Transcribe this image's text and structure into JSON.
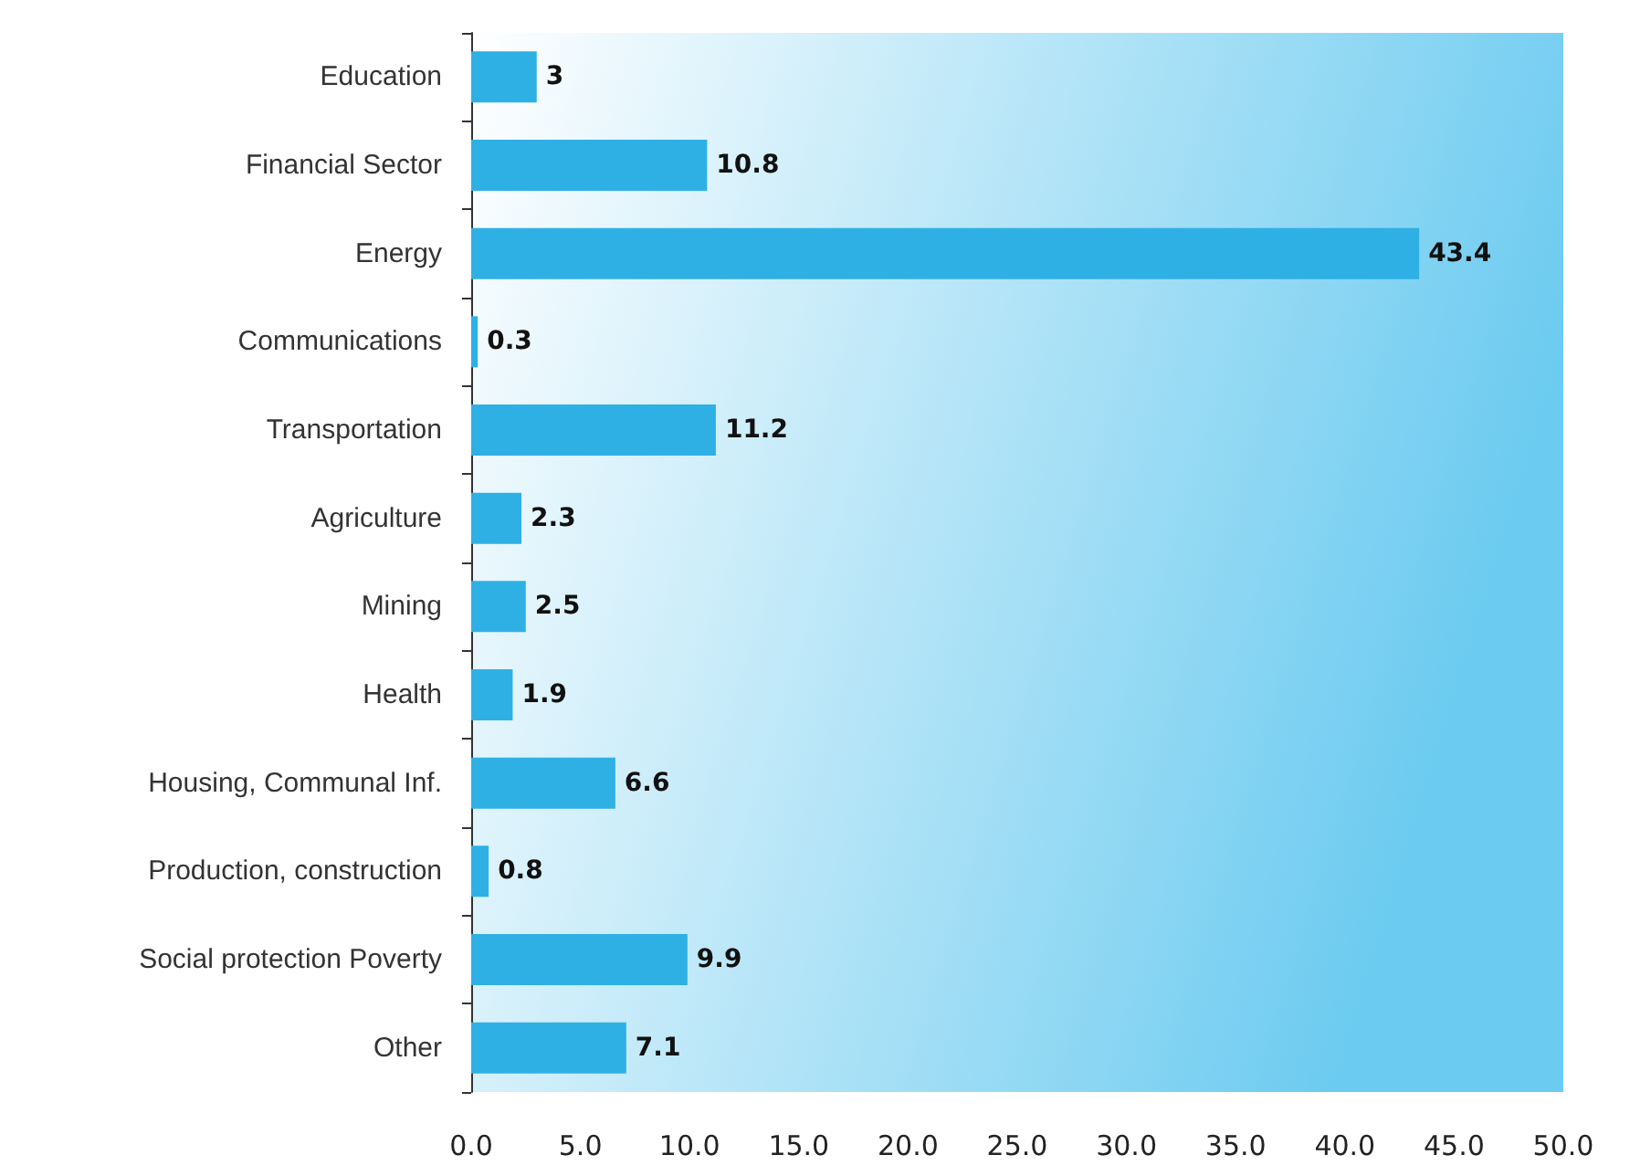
{
  "chart_data": {
    "type": "bar",
    "orientation": "horizontal",
    "categories": [
      "Education",
      "Financial Sector",
      "Energy",
      "Communications",
      "Transportation",
      "Agriculture",
      "Mining",
      "Health",
      "Housing, Communal Inf.",
      "Production, construction",
      "Social protection Poverty",
      "Other"
    ],
    "values": [
      3,
      10.8,
      43.4,
      0.3,
      11.2,
      2.3,
      2.5,
      1.9,
      6.6,
      0.8,
      9.9,
      7.1
    ],
    "color": "#2fb0e4",
    "xlim": [
      0,
      50
    ],
    "xticks": [
      {
        "value": 0,
        "label": "0.0"
      },
      {
        "value": 5,
        "label": "5.0"
      },
      {
        "value": 10,
        "label": "10.0"
      },
      {
        "value": 15,
        "label": "15.0"
      },
      {
        "value": 20,
        "label": "20.0"
      },
      {
        "value": 25,
        "label": "25.0"
      },
      {
        "value": 30,
        "label": "30.0"
      },
      {
        "value": 35,
        "label": "35.0"
      },
      {
        "value": 40,
        "label": "40.0"
      },
      {
        "value": 45,
        "label": "45.0"
      },
      {
        "value": 50,
        "label": "50.0"
      }
    ],
    "data_labels": true,
    "grid": false
  }
}
